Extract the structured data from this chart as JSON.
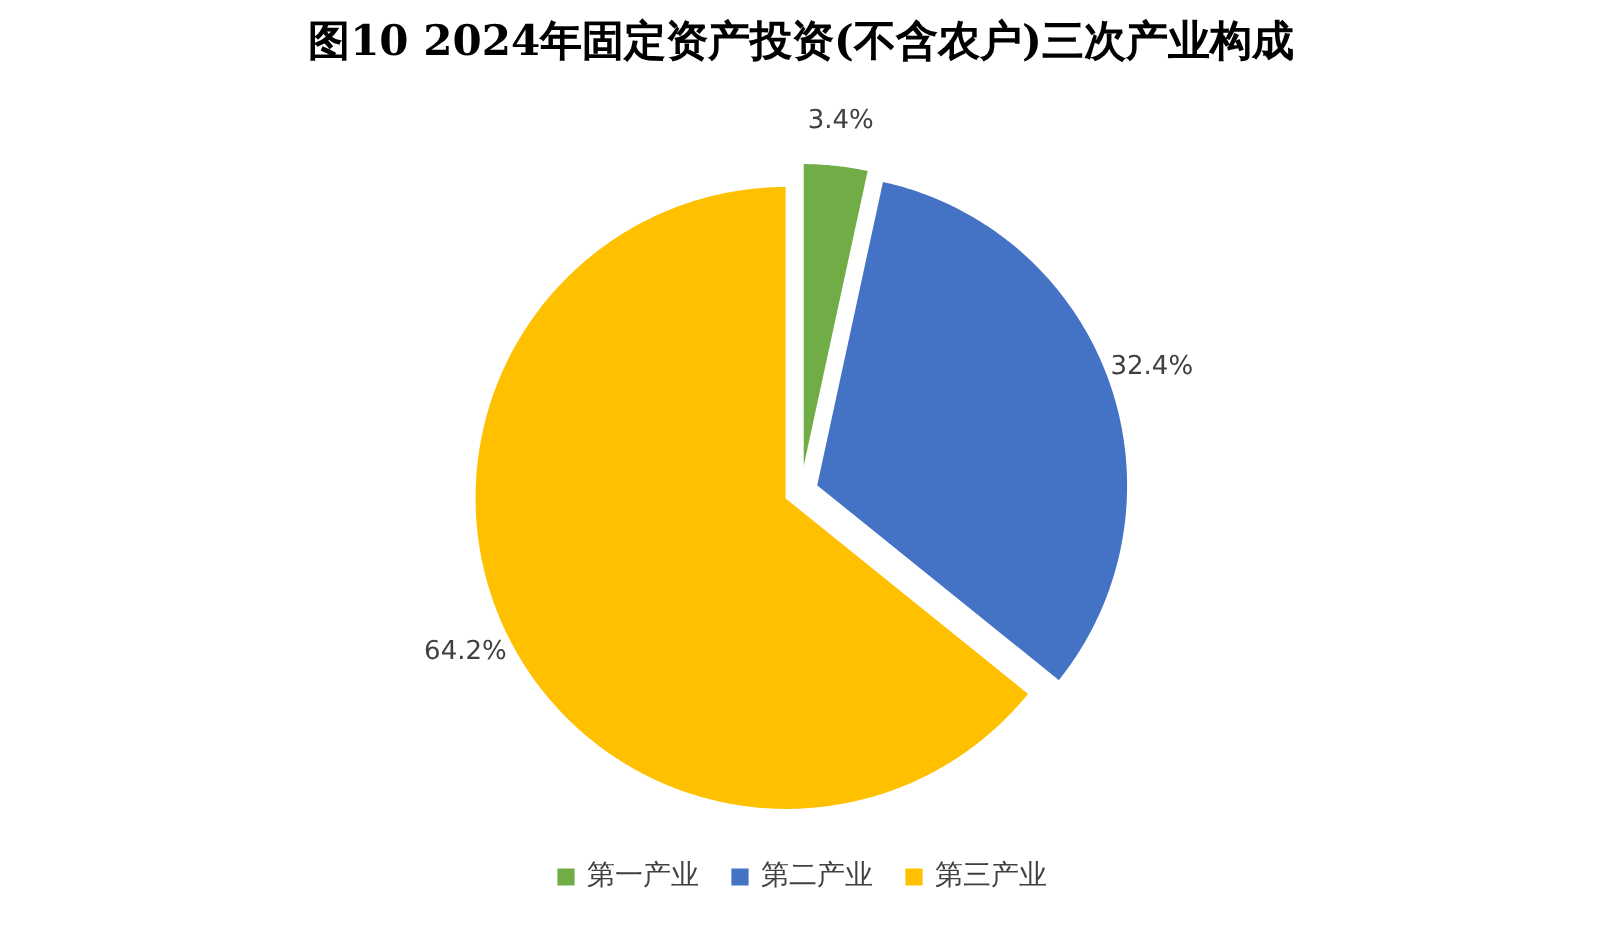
{
  "chart_data": {
    "type": "pie",
    "title": "图10 2024年固定资产投资(不含农户)三次产业构成",
    "categories": [
      "第一产业",
      "第二产业",
      "第三产业"
    ],
    "values": [
      3.4,
      32.4,
      64.2
    ],
    "colors": [
      "#70ad47",
      "#4472c4",
      "#ffc000"
    ],
    "value_labels": [
      "3.4%",
      "32.4%",
      "64.2%"
    ],
    "legend": "bottom"
  }
}
